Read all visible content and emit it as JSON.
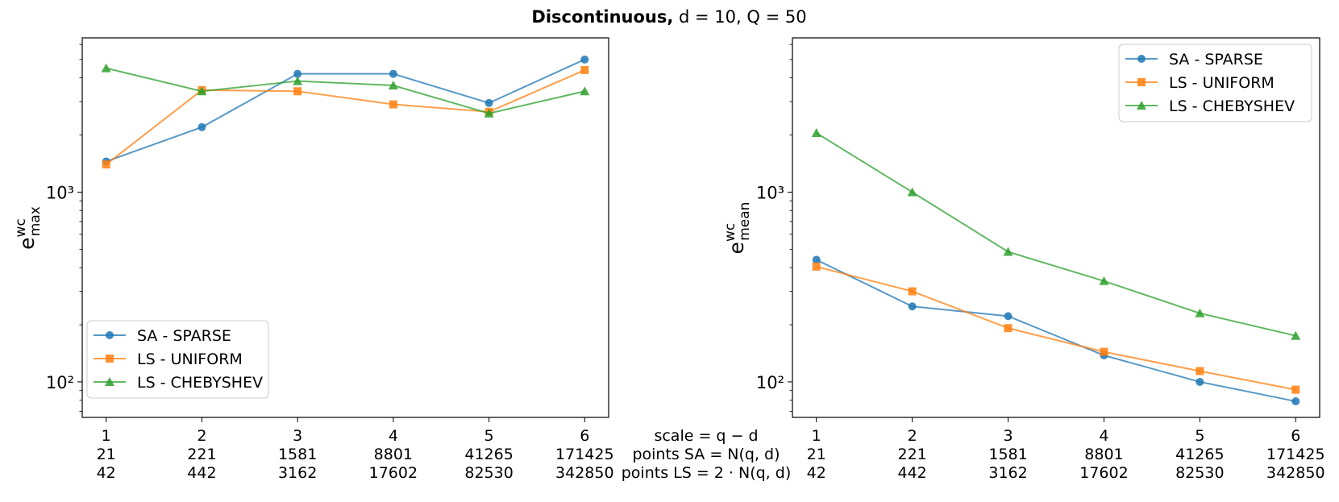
{
  "figure": {
    "title_bold": "Discontinuous,",
    "title_rest": " d = 10, Q = 50"
  },
  "center_labels": {
    "scale": "scale = q − d",
    "points_sa": "points SA = N(q, d)",
    "points_ls": "points LS = 2 · N(q, d)"
  },
  "colors": {
    "SA - SPARSE": "#1f77b4",
    "LS - UNIFORM": "#ff7f0e",
    "LS - CHEBYSHEV": "#2ca02c"
  },
  "chart_data": [
    {
      "type": "line",
      "title": "",
      "xlabel": "",
      "ylabel": "e_max^wc",
      "yscale": "log",
      "ylim": [
        65,
        6500
      ],
      "xlim": [
        0.75,
        6.25
      ],
      "yticks": [
        {
          "value": 100,
          "label": "10²"
        },
        {
          "value": 1000,
          "label": "10³"
        }
      ],
      "x": [
        1,
        2,
        3,
        4,
        5,
        6
      ],
      "xtick_rows": [
        [
          "1",
          "2",
          "3",
          "4",
          "5",
          "6"
        ],
        [
          "21",
          "221",
          "1581",
          "8801",
          "41265",
          "171425"
        ],
        [
          "42",
          "442",
          "3162",
          "17602",
          "82530",
          "342850"
        ]
      ],
      "legend": "lower-left",
      "series": [
        {
          "name": "SA - SPARSE",
          "marker": "circle",
          "values": [
            1450,
            2200,
            4200,
            4200,
            2950,
            5000
          ]
        },
        {
          "name": "LS - UNIFORM",
          "marker": "square",
          "values": [
            1400,
            3450,
            3400,
            2900,
            2650,
            4400
          ]
        },
        {
          "name": "LS - CHEBYSHEV",
          "marker": "triangle",
          "values": [
            4500,
            3400,
            3850,
            3650,
            2600,
            3400
          ]
        }
      ]
    },
    {
      "type": "line",
      "title": "",
      "xlabel": "",
      "ylabel": "e_mean^wc",
      "yscale": "log",
      "ylim": [
        65,
        6500
      ],
      "xlim": [
        0.75,
        6.25
      ],
      "yticks": [
        {
          "value": 100,
          "label": "10²"
        },
        {
          "value": 1000,
          "label": "10³"
        }
      ],
      "x": [
        1,
        2,
        3,
        4,
        5,
        6
      ],
      "xtick_rows": [
        [
          "1",
          "2",
          "3",
          "4",
          "5",
          "6"
        ],
        [
          "21",
          "221",
          "1581",
          "8801",
          "41265",
          "171425"
        ],
        [
          "42",
          "442",
          "3162",
          "17602",
          "82530",
          "342850"
        ]
      ],
      "legend": "upper-right",
      "series": [
        {
          "name": "SA - SPARSE",
          "marker": "circle",
          "values": [
            440,
            250,
            222,
            138,
            100,
            79
          ]
        },
        {
          "name": "LS - UNIFORM",
          "marker": "square",
          "values": [
            405,
            300,
            192,
            144,
            114,
            91
          ]
        },
        {
          "name": "LS - CHEBYSHEV",
          "marker": "triangle",
          "values": [
            2050,
            1000,
            485,
            340,
            230,
            175
          ]
        }
      ]
    }
  ]
}
